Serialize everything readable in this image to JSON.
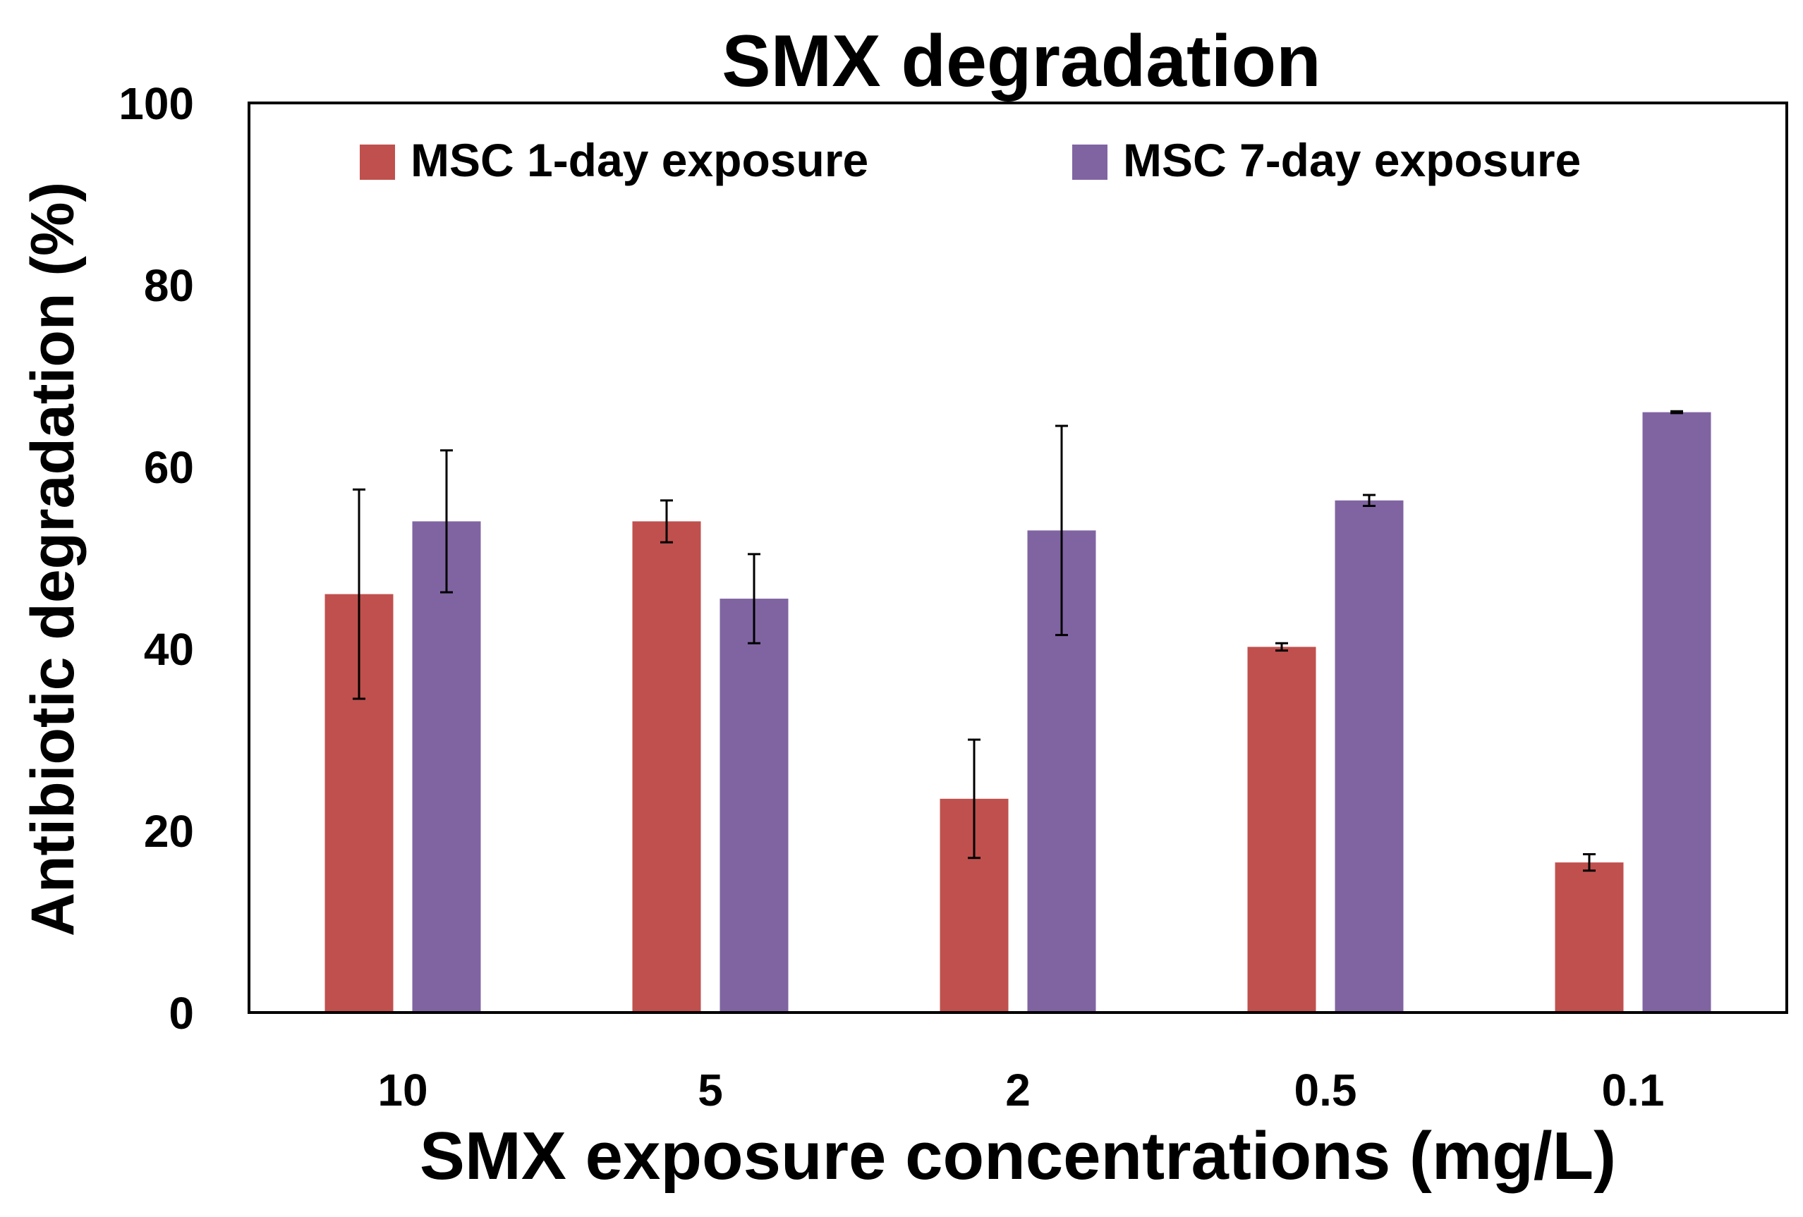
{
  "chart_data": {
    "type": "bar",
    "title": "SMX degradation",
    "xlabel": "SMX exposure concentrations (mg/L)",
    "ylabel": "Antibiotic degradation (%)",
    "categories": [
      "10",
      "5",
      "2",
      "0.5",
      "0.1"
    ],
    "ylim": [
      0,
      100
    ],
    "yticks": [
      0,
      20,
      40,
      60,
      80,
      100
    ],
    "grid": false,
    "legend_position": "top",
    "series": [
      {
        "name": "MSC 1-day exposure",
        "color": "#c0504d",
        "values": [
          46,
          54,
          23.5,
          40.2,
          16.5
        ],
        "errors": [
          11.5,
          2.3,
          6.5,
          0.4,
          0.9
        ]
      },
      {
        "name": "MSC 7-day exposure",
        "color": "#8064a2",
        "values": [
          54,
          45.5,
          53,
          56.3,
          66
        ],
        "errors": [
          7.8,
          4.9,
          11.5,
          0.6,
          0.1
        ]
      }
    ]
  }
}
